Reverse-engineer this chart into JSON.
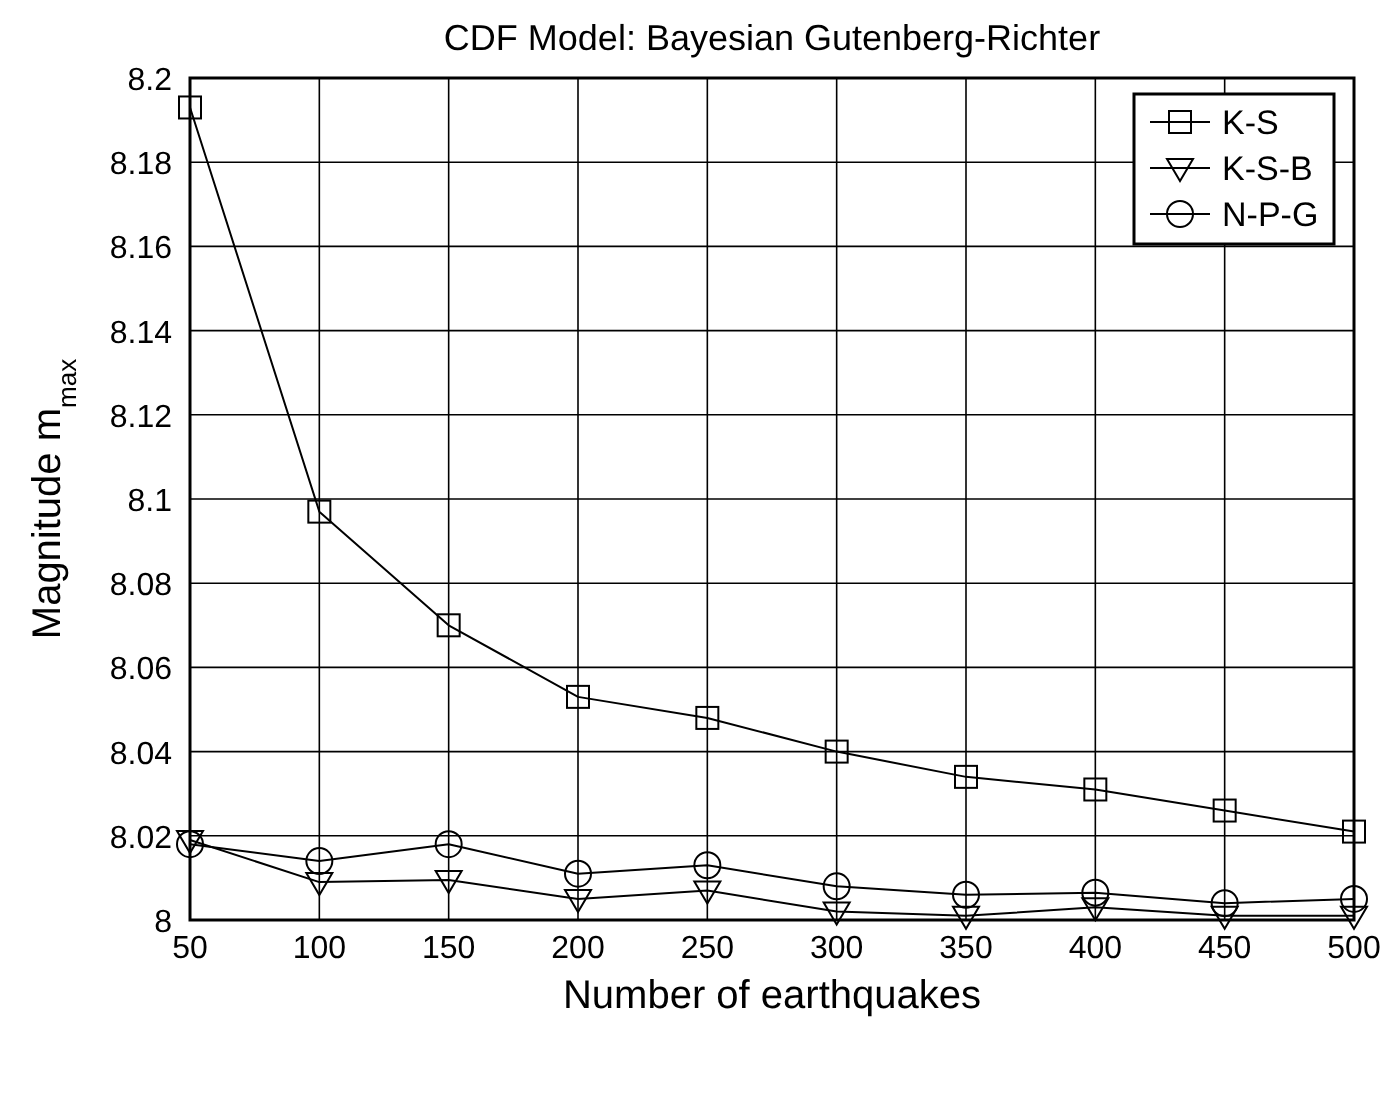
{
  "chart_data": {
    "type": "line",
    "title": "CDF Model: Bayesian Gutenberg-Richter",
    "xlabel": "Number of earthquakes",
    "ylabel": "Magnitude m$_{max}$",
    "x": [
      50,
      100,
      150,
      200,
      250,
      300,
      350,
      400,
      450,
      500
    ],
    "series": [
      {
        "name": "K-S",
        "color": "#000000",
        "marker": "square",
        "values": [
          8.193,
          8.097,
          8.07,
          8.053,
          8.048,
          8.04,
          8.034,
          8.031,
          8.026,
          8.021
        ]
      },
      {
        "name": "K-S-B",
        "color": "#000000",
        "marker": "triangle",
        "values": [
          8.019,
          8.009,
          8.0095,
          8.005,
          8.007,
          8.002,
          8.001,
          8.003,
          8.001,
          8.001
        ]
      },
      {
        "name": "N-P-G",
        "color": "#000000",
        "marker": "circle",
        "values": [
          8.018,
          8.014,
          8.018,
          8.011,
          8.013,
          8.008,
          8.006,
          8.0065,
          8.004,
          8.005
        ]
      }
    ],
    "xlim": [
      50,
      500
    ],
    "xticks": [
      50,
      100,
      150,
      200,
      250,
      300,
      350,
      400,
      450,
      500
    ],
    "ylim": [
      8,
      8.2
    ],
    "yticks": [
      8,
      8.02,
      8.04,
      8.06,
      8.08,
      8.1,
      8.12,
      8.14,
      8.16,
      8.18,
      8.2
    ],
    "grid": true,
    "legend": "top right",
    "line_style": "solid"
  }
}
